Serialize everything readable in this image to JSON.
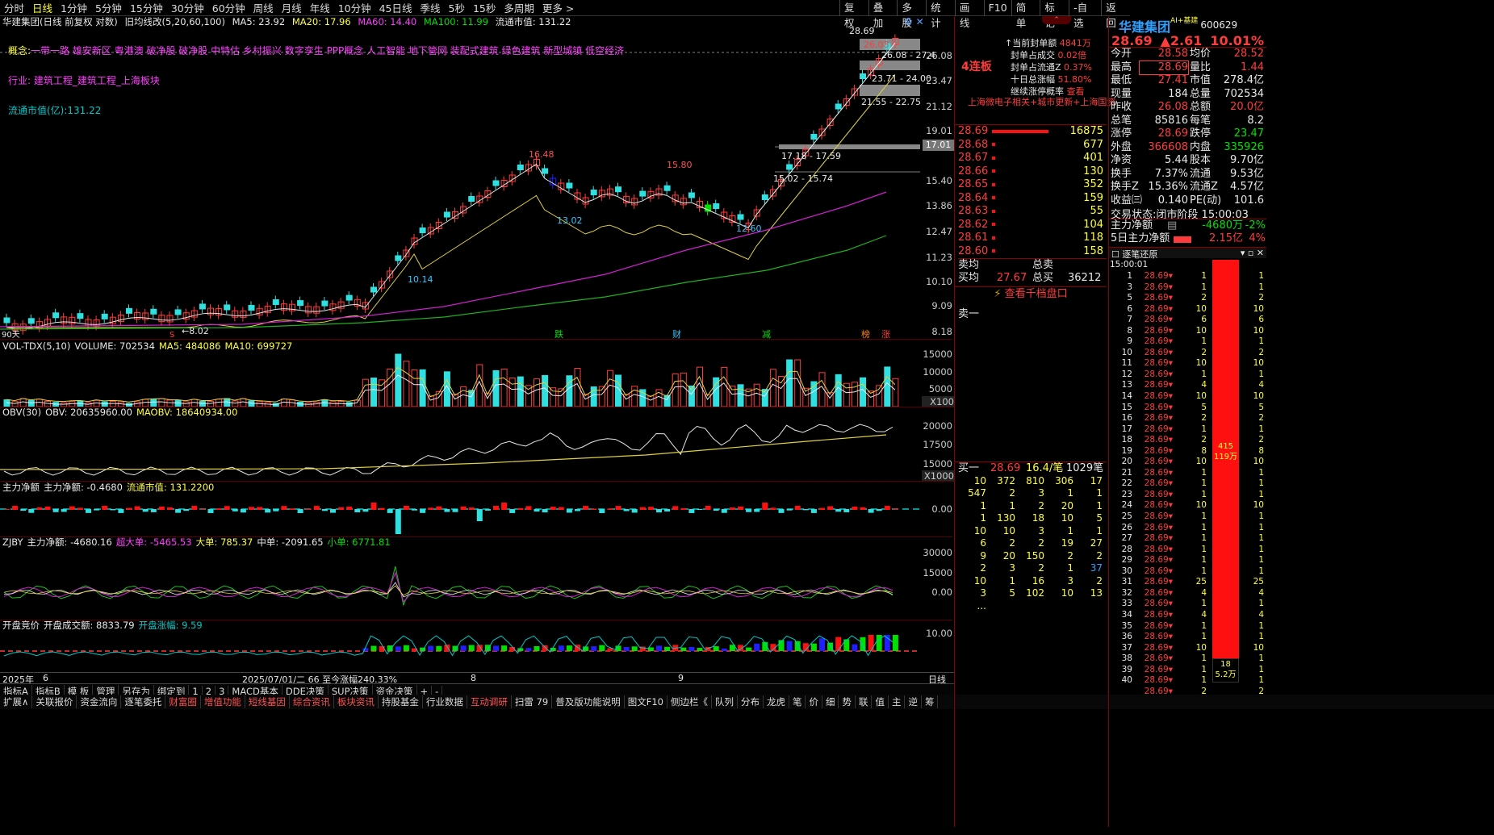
{
  "toolbar": {
    "periods": [
      "分时",
      "日线",
      "1分钟",
      "5分钟",
      "15分钟",
      "30分钟",
      "60分钟",
      "周线",
      "月线",
      "年线",
      "10分钟",
      "45日线",
      "季线",
      "5秒",
      "15秒",
      "多周期",
      "更多 >"
    ],
    "active": "日线",
    "right": [
      "复权",
      "叠加",
      "多股",
      "统计",
      "画线",
      "F10",
      "简单",
      "标记",
      "-自选",
      "返回"
    ]
  },
  "main": {
    "title": "华建集团(日线 前复权 对数)",
    "indicator": "旧均线改(5,20,60,100)",
    "ma5": "MA5: 23.92",
    "ma20": "MA20: 17.96",
    "ma60": "MA60: 14.40",
    "ma100": "MA100: 11.99",
    "mcap": "流通市值: 131.22",
    "concept_label": "概念:",
    "concepts": "一带一路 雄安新区 粤港澳 破净股 破净股 中特估 乡村振兴 数字孪生 PPP概念 人工智能 地下管网 装配式建筑 绿色建筑 新型城镇 低空经济",
    "industry": "行业: 建筑工程_建筑工程_上海板块",
    "mcap_line": "流通市值(亿):131.22",
    "axis": [
      "26.08",
      "23.47",
      "21.12",
      "19.01",
      "17.01",
      "15.40",
      "13.86",
      "12.47",
      "11.23",
      "10.10",
      "9.09",
      "8.18"
    ],
    "highs": [
      "16.48",
      "15.80",
      "28.69"
    ],
    "lows": [
      "10.14",
      "13.02",
      "12.60",
      "8.02"
    ],
    "bands": [
      "26.08 - 27.4",
      "23.71 - 24.00",
      "21.55 - 22.75",
      "17.18 - 17.59",
      "15.02 - 15.74"
    ],
    "flag1": "90天",
    "flag2": "财",
    "flag3": "减",
    "flag4": "榜",
    "flag5": "涨",
    "flag6": "跌",
    "mark1": "26.08"
  },
  "vol": {
    "hdr": "VOL-TDX(5,10)",
    "v": "VOLUME: 702534",
    "ma5": "MA5: 484086",
    "ma10": "MA10: 699727",
    "axis": [
      "15000",
      "10000",
      "5000",
      "X100"
    ]
  },
  "obv": {
    "hdr": "OBV(30)",
    "v": "OBV: 20635960.00",
    "ma": "MAOBV: 18640934.00",
    "axis": [
      "20000",
      "17500",
      "15000",
      "X1000"
    ]
  },
  "main_net": {
    "hdr": "主力净额",
    "v": "主力净额: -0.4680",
    "mc": "流通市值: 131.2200",
    "axis": [
      "0.00"
    ]
  },
  "zjby": {
    "hdr": "ZJBY",
    "v": "主力净额: -4680.16",
    "s1": "超大单: -5465.53",
    "s2": "大单: 785.37",
    "s3": "中单: -2091.65",
    "s4": "小单: 6771.81",
    "axis": [
      "30000",
      "15000",
      "0.00"
    ]
  },
  "auction": {
    "hdr": "开盘竞价",
    "v": "开盘成交额: 8833.79",
    "c": "开盘涨幅: 9.59",
    "axis": [
      "10.00"
    ]
  },
  "date_axis": {
    "year": "2025年",
    "m6": "6",
    "range": "2025/07/01/二 66 至今涨幅240.33%",
    "m8": "8",
    "m9": "9",
    "daily": "日线"
  },
  "stock": {
    "name": "华建集团",
    "tag": "AI+基建",
    "code": "600629",
    "price": "28.69",
    "chg": "▲2.61",
    "pct": "10.01%"
  },
  "limit": {
    "title": "4连板",
    "l1": "当前封单额",
    "v1": "4841万",
    "l2": "封单占成交",
    "v2": "0.02倍",
    "l3": "封单占流通Z",
    "v3": "0.37%",
    "l4": "十日总涨幅",
    "v4": "51.80%",
    "l5": "继续涨停概率",
    "v5": "查看",
    "tags": "上海微电子相关+城市更新+上海国资"
  },
  "asks": [
    [
      "28.69",
      "16875"
    ],
    [
      "28.68",
      "677"
    ],
    [
      "28.67",
      "401"
    ],
    [
      "28.66",
      "130"
    ],
    [
      "28.65",
      "352"
    ],
    [
      "28.64",
      "159"
    ],
    [
      "28.63",
      "55"
    ],
    [
      "28.62",
      "104"
    ],
    [
      "28.61",
      "118"
    ],
    [
      "28.60",
      "158"
    ]
  ],
  "avg": {
    "l1": "卖均",
    "l2": "总卖",
    "l3": "买均",
    "v3": "27.67",
    "l4": "总买",
    "v4": "36212",
    "view": "查看千档盘口",
    "sell1": "卖一"
  },
  "buy1": {
    "l": "买一",
    "p": "28.69",
    "s": "16.4/笔",
    "n": "1029笔"
  },
  "queue": [
    [
      "10",
      "372",
      "810",
      "306",
      "17"
    ],
    [
      "547",
      "2",
      "3",
      "1",
      "1"
    ],
    [
      "1",
      "1",
      "2",
      "20",
      "1"
    ],
    [
      "1",
      "130",
      "18",
      "10",
      "5"
    ],
    [
      "10",
      "10",
      "3",
      "1",
      "1"
    ],
    [
      "6",
      "2",
      "2",
      "19",
      "27"
    ],
    [
      "9",
      "20",
      "150",
      "2",
      "2"
    ],
    [
      "2",
      "3",
      "2",
      "1",
      "37"
    ],
    [
      "10",
      "1",
      "16",
      "3",
      "2"
    ],
    [
      "3",
      "5",
      "102",
      "10",
      "13"
    ],
    [
      "...",
      "",
      "",
      "",
      ""
    ]
  ],
  "quote": [
    [
      "今开",
      "28.58",
      "均价",
      "28.52"
    ],
    [
      "最高",
      "28.69",
      "量比",
      "1.44"
    ],
    [
      "最低",
      "27.41",
      "市值",
      "278.4亿"
    ],
    [
      "现量",
      "184",
      "总量",
      "702534"
    ],
    [
      "昨收",
      "26.08",
      "总额",
      "20.0亿"
    ],
    [
      "总笔",
      "85816",
      "每笔",
      "8.2"
    ],
    [
      "涨停",
      "28.69",
      "跌停",
      "23.47"
    ],
    [
      "外盘",
      "366608",
      "内盘",
      "335926"
    ],
    [
      "净资",
      "5.44",
      "股本",
      "9.70亿"
    ],
    [
      "换手",
      "7.37%",
      "流通",
      "9.53亿"
    ],
    [
      "换手Z",
      "15.36%",
      "流通Z",
      "4.57亿"
    ],
    [
      "收益㈢",
      "0.140",
      "PE(动)",
      "101.6"
    ]
  ],
  "trade_state": {
    "l": "交易状态:",
    "v": "闭市阶段",
    "t": "15:00:03"
  },
  "flow": {
    "l1": "主力净额",
    "v1": "-4680万",
    "p1": "-2%",
    "l2": "5日主力净额",
    "v2": "2.15亿",
    "p2": "4%"
  },
  "ticks": {
    "title": "逐笔还原",
    "time": "15:00:01",
    "price": "28.69",
    "rows": [
      [
        "1",
        "1"
      ],
      [
        "1",
        "1"
      ],
      [
        "2",
        "2"
      ],
      [
        "10",
        "10"
      ],
      [
        "6",
        "6"
      ],
      [
        "10",
        "10"
      ],
      [
        "1",
        "1"
      ],
      [
        "2",
        "2"
      ],
      [
        "10",
        "10"
      ],
      [
        "1",
        "1"
      ],
      [
        "4",
        "4"
      ],
      [
        "10",
        "10"
      ],
      [
        "5",
        "5"
      ],
      [
        "2",
        "2"
      ],
      [
        "1",
        "1"
      ],
      [
        "2",
        "2"
      ],
      [
        "8",
        "8"
      ],
      [
        "10",
        "10"
      ],
      [
        "1",
        "1"
      ],
      [
        "1",
        "1"
      ],
      [
        "1",
        "1"
      ],
      [
        "10",
        "10"
      ],
      [
        "1",
        "1"
      ],
      [
        "1",
        "1"
      ],
      [
        "1",
        "1"
      ],
      [
        "1",
        "1"
      ],
      [
        "1",
        "1"
      ],
      [
        "1",
        "1"
      ],
      [
        "25",
        "25"
      ],
      [
        "4",
        "4"
      ],
      [
        "1",
        "1"
      ],
      [
        "4",
        "4"
      ],
      [
        "1",
        "1"
      ],
      [
        "1",
        "1"
      ],
      [
        "10",
        "10"
      ],
      [
        "1",
        "1"
      ],
      [
        "1",
        "1"
      ],
      [
        "1",
        "1"
      ],
      [
        "2",
        "2"
      ]
    ],
    "seq": [
      "1",
      "3",
      "5",
      "6",
      "7",
      "8",
      "9",
      "10",
      "11",
      "12",
      "13",
      "14",
      "15",
      "16",
      "17",
      "18",
      "19",
      "20",
      "21",
      "22",
      "23",
      "24",
      "25",
      "26",
      "27",
      "28",
      "29",
      "30",
      "31",
      "32",
      "33",
      "34",
      "35",
      "36",
      "37",
      "38",
      "39",
      "40"
    ],
    "bar_v1": "415",
    "bar_v2": "119万",
    "bar_v3": "18",
    "bar_v4": "5.2万"
  },
  "bottom1": [
    "指标A",
    "指标B",
    "模 板",
    "管理",
    "另存为",
    "绑定到",
    "1",
    "2",
    "3",
    "MACD基本",
    "DDE决策",
    "SUP决策",
    "资金决策",
    "+",
    "-"
  ],
  "bottom2": [
    "扩展∧",
    "关联报价",
    "资金流向",
    "逐笔委托",
    "财富圈",
    "增值功能",
    "短线基因",
    "综合资讯",
    "板块资讯",
    "持股基金",
    "行业数据",
    "互动调研",
    "扫雷 79",
    "普及版功能说明",
    "图文F10",
    "侧边栏《",
    "队列",
    "分布",
    "龙虎",
    "笔",
    "价",
    "细",
    "势",
    "联",
    "值",
    "主",
    "逆",
    "筹"
  ]
}
